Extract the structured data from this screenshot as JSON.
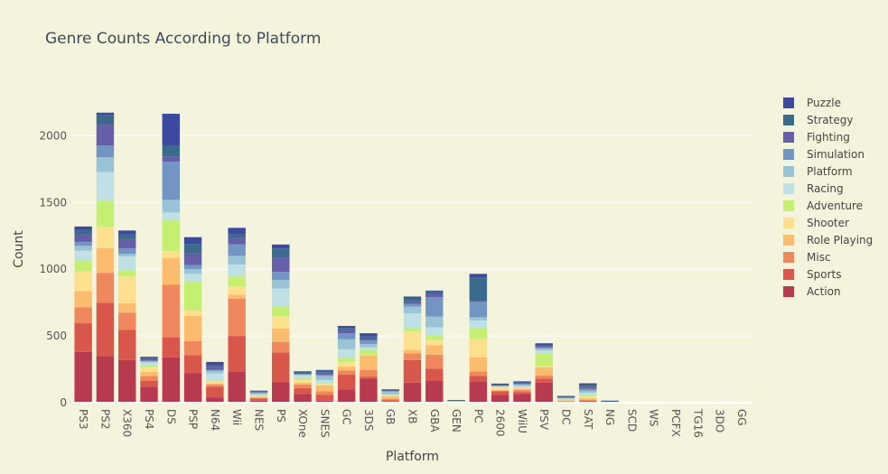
{
  "chart_data": {
    "type": "bar",
    "stacked": true,
    "title": "Genre Counts According to Platform",
    "xlabel": "Platform",
    "ylabel": "Count",
    "ylim": [
      0,
      2300
    ],
    "yticks": [
      0,
      500,
      1000,
      1500,
      2000
    ],
    "grid": true,
    "legend_position": "right",
    "categories": [
      "PS3",
      "PS2",
      "X360",
      "PS4",
      "DS",
      "PSP",
      "N64",
      "Wii",
      "NES",
      "PS",
      "XOne",
      "SNES",
      "GC",
      "3DS",
      "GB",
      "XB",
      "GBA",
      "GEN",
      "PC",
      "2600",
      "WiiU",
      "PSV",
      "DC",
      "SAT",
      "NG",
      "SCD",
      "WS",
      "PCFX",
      "TG16",
      "3DO",
      "GG"
    ],
    "series": [
      {
        "name": "Action",
        "color": "#b83a4f",
        "values": [
          380,
          348,
          320,
          120,
          340,
          220,
          40,
          235,
          15,
          155,
          65,
          15,
          100,
          180,
          7,
          150,
          165,
          3,
          160,
          60,
          65,
          150,
          5,
          5,
          0,
          0,
          0,
          0,
          0,
          0,
          0
        ]
      },
      {
        "name": "Sports",
        "color": "#d9574a",
        "values": [
          215,
          400,
          225,
          45,
          150,
          135,
          80,
          265,
          15,
          220,
          45,
          45,
          110,
          15,
          10,
          170,
          90,
          3,
          40,
          25,
          15,
          30,
          5,
          10,
          0,
          0,
          0,
          0,
          0,
          0,
          0
        ]
      },
      {
        "name": "Misc",
        "color": "#f0885e",
        "values": [
          120,
          225,
          130,
          35,
          395,
          105,
          15,
          280,
          7,
          80,
          25,
          25,
          30,
          50,
          10,
          50,
          105,
          1,
          35,
          5,
          15,
          25,
          2,
          5,
          0,
          0,
          0,
          0,
          0,
          0,
          0
        ]
      },
      {
        "name": "Role Playing",
        "color": "#fcbc6e",
        "values": [
          120,
          185,
          70,
          30,
          200,
          190,
          10,
          30,
          5,
          100,
          15,
          45,
          30,
          110,
          20,
          25,
          70,
          1,
          105,
          5,
          10,
          60,
          5,
          15,
          0,
          0,
          0,
          2,
          0,
          0,
          0
        ]
      },
      {
        "name": "Shooter",
        "color": "#fde08d",
        "values": [
          150,
          160,
          200,
          35,
          50,
          40,
          15,
          60,
          5,
          90,
          20,
          10,
          35,
          5,
          5,
          140,
          40,
          1,
          140,
          20,
          5,
          10,
          2,
          10,
          0,
          0,
          0,
          0,
          0,
          0,
          0
        ]
      },
      {
        "name": "Adventure",
        "color": "#c4f072",
        "values": [
          80,
          195,
          45,
          15,
          230,
          215,
          5,
          75,
          5,
          75,
          15,
          5,
          30,
          35,
          5,
          20,
          35,
          1,
          75,
          2,
          5,
          90,
          5,
          15,
          0,
          0,
          0,
          0,
          0,
          0,
          0
        ]
      },
      {
        "name": "Racing",
        "color": "#bfe0e5",
        "values": [
          75,
          215,
          105,
          20,
          60,
          60,
          55,
          90,
          10,
          135,
          20,
          25,
          65,
          20,
          5,
          115,
          60,
          1,
          60,
          5,
          10,
          25,
          5,
          15,
          0,
          0,
          0,
          0,
          0,
          0,
          0
        ]
      },
      {
        "name": "Platform",
        "color": "#98c4d6",
        "values": [
          35,
          110,
          20,
          10,
          95,
          35,
          20,
          65,
          10,
          65,
          5,
          30,
          75,
          25,
          20,
          50,
          80,
          4,
          25,
          5,
          10,
          15,
          5,
          15,
          0,
          0,
          0,
          0,
          0,
          0,
          0
        ]
      },
      {
        "name": "Simulation",
        "color": "#7295c4",
        "values": [
          30,
          90,
          40,
          5,
          285,
          30,
          5,
          85,
          5,
          60,
          5,
          10,
          45,
          25,
          5,
          20,
          145,
          1,
          115,
          2,
          5,
          10,
          5,
          15,
          0,
          0,
          0,
          0,
          0,
          0,
          0
        ]
      },
      {
        "name": "Fighting",
        "color": "#645fa8",
        "values": [
          60,
          155,
          70,
          20,
          40,
          90,
          25,
          50,
          5,
          105,
          5,
          15,
          25,
          15,
          5,
          20,
          25,
          2,
          5,
          2,
          5,
          5,
          5,
          15,
          0,
          0,
          0,
          0,
          0,
          0,
          0
        ]
      },
      {
        "name": "Strategy",
        "color": "#3a6b8c",
        "values": [
          30,
          70,
          40,
          5,
          80,
          70,
          10,
          25,
          3,
          70,
          10,
          15,
          15,
          15,
          3,
          25,
          20,
          1,
          180,
          2,
          5,
          10,
          5,
          15,
          10,
          5,
          0,
          0,
          0,
          0,
          0
        ]
      },
      {
        "name": "Puzzle",
        "color": "#3b49a0",
        "values": [
          25,
          20,
          25,
          5,
          240,
          50,
          25,
          50,
          5,
          30,
          5,
          5,
          15,
          25,
          5,
          10,
          5,
          1,
          25,
          10,
          10,
          15,
          1,
          10,
          5,
          0,
          0,
          0,
          0,
          0,
          0
        ]
      }
    ]
  }
}
